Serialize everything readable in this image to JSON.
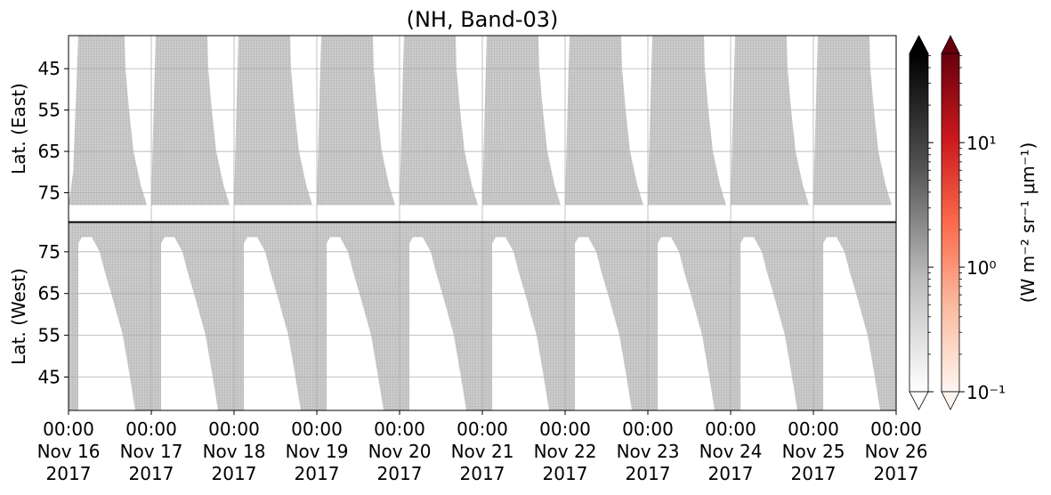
{
  "chart_data": [
    {
      "type": "heatmap",
      "title": "(NH, Band-03)",
      "ylabel": "Lat. (East)",
      "yinvert": true,
      "ylim": [
        37,
        82
      ],
      "yticks": [
        45,
        55,
        65,
        75
      ],
      "grid": true,
      "xlim": [
        "2017-11-16T00:00",
        "2017-11-26T00:00"
      ],
      "xticks": [
        "2017-11-16T00:00",
        "2017-11-17T00:00",
        "2017-11-18T00:00",
        "2017-11-19T00:00",
        "2017-11-20T00:00",
        "2017-11-21T00:00",
        "2017-11-22T00:00",
        "2017-11-23T00:00",
        "2017-11-24T00:00",
        "2017-11-25T00:00",
        "2017-11-26T00:00"
      ],
      "coverage_color": "#cccccc",
      "gap_color": "#ffffff",
      "gaps": [
        {
          "x": [
            "2017-11-16T00:00",
            "2017-11-16T02:50",
            "2017-11-16T01:20",
            "2017-11-16T00:00"
          ],
          "y": [
            37,
            37,
            70,
            78
          ]
        },
        {
          "x": [
            "2017-11-16T00:00",
            "2017-11-26T00:00",
            "2017-11-26T00:00",
            "2017-11-16T00:00"
          ],
          "y": [
            78,
            78,
            82,
            82
          ]
        },
        {
          "x": [
            "2017-11-16T16:16",
            "2017-11-16T16:31",
            "2017-11-16T17:33",
            "2017-11-16T18:50",
            "2017-11-16T20:54",
            "2017-11-16T22:43",
            "2017-11-17T00:00",
            "2017-11-17T00:31",
            "2017-11-17T01:17"
          ],
          "y": [
            37,
            45,
            55,
            65,
            73,
            78,
            78,
            60,
            37
          ]
        },
        {
          "x": [
            "2017-11-17T16:16",
            "2017-11-17T16:31",
            "2017-11-17T17:33",
            "2017-11-17T18:50",
            "2017-11-17T20:54",
            "2017-11-17T22:43",
            "2017-11-18T00:00",
            "2017-11-18T00:31",
            "2017-11-18T01:17"
          ],
          "y": [
            37,
            45,
            55,
            65,
            73,
            78,
            78,
            60,
            37
          ]
        },
        {
          "x": [
            "2017-11-18T16:16",
            "2017-11-18T16:31",
            "2017-11-18T17:33",
            "2017-11-18T18:50",
            "2017-11-18T20:54",
            "2017-11-18T22:43",
            "2017-11-19T00:00",
            "2017-11-19T00:31",
            "2017-11-19T01:17"
          ],
          "y": [
            37,
            45,
            55,
            65,
            73,
            78,
            78,
            60,
            37
          ]
        },
        {
          "x": [
            "2017-11-19T16:16",
            "2017-11-19T16:31",
            "2017-11-19T17:33",
            "2017-11-19T18:50",
            "2017-11-19T20:54",
            "2017-11-19T22:43",
            "2017-11-20T00:00",
            "2017-11-20T00:31",
            "2017-11-20T01:17"
          ],
          "y": [
            37,
            45,
            55,
            65,
            73,
            78,
            78,
            60,
            37
          ]
        },
        {
          "x": [
            "2017-11-20T16:16",
            "2017-11-20T16:31",
            "2017-11-20T17:33",
            "2017-11-20T18:50",
            "2017-11-20T20:54",
            "2017-11-20T22:43",
            "2017-11-21T00:00",
            "2017-11-21T00:31",
            "2017-11-21T01:17"
          ],
          "y": [
            37,
            45,
            55,
            65,
            73,
            78,
            78,
            60,
            37
          ]
        },
        {
          "x": [
            "2017-11-21T16:16",
            "2017-11-21T16:31",
            "2017-11-21T17:33",
            "2017-11-21T18:50",
            "2017-11-21T20:54",
            "2017-11-21T22:43",
            "2017-11-22T00:00",
            "2017-11-22T00:31",
            "2017-11-22T01:17"
          ],
          "y": [
            37,
            45,
            55,
            65,
            73,
            78,
            78,
            60,
            37
          ]
        },
        {
          "x": [
            "2017-11-22T16:16",
            "2017-11-22T16:31",
            "2017-11-22T17:33",
            "2017-11-22T18:50",
            "2017-11-22T20:54",
            "2017-11-22T22:43",
            "2017-11-23T00:00",
            "2017-11-23T00:31",
            "2017-11-23T01:17"
          ],
          "y": [
            37,
            45,
            55,
            65,
            73,
            78,
            78,
            60,
            37
          ]
        },
        {
          "x": [
            "2017-11-23T16:16",
            "2017-11-23T16:31",
            "2017-11-23T17:33",
            "2017-11-23T18:50",
            "2017-11-23T20:54",
            "2017-11-23T22:43",
            "2017-11-24T00:00",
            "2017-11-24T00:31",
            "2017-11-24T01:17"
          ],
          "y": [
            37,
            45,
            55,
            65,
            73,
            78,
            78,
            60,
            37
          ]
        },
        {
          "x": [
            "2017-11-24T16:16",
            "2017-11-24T16:31",
            "2017-11-24T17:33",
            "2017-11-24T18:50",
            "2017-11-24T20:54",
            "2017-11-24T22:43",
            "2017-11-25T00:00",
            "2017-11-25T00:31",
            "2017-11-25T01:17"
          ],
          "y": [
            37,
            45,
            55,
            65,
            73,
            78,
            78,
            60,
            37
          ]
        },
        {
          "x": [
            "2017-11-25T16:16",
            "2017-11-25T16:31",
            "2017-11-25T17:33",
            "2017-11-25T18:50",
            "2017-11-25T20:54",
            "2017-11-25T22:43",
            "2017-11-26T00:00",
            "2017-11-26T00:31",
            "2017-11-26T01:17"
          ],
          "y": [
            37,
            45,
            55,
            65,
            73,
            78,
            78,
            60,
            37
          ]
        }
      ]
    },
    {
      "type": "heatmap",
      "ylabel": "Lat. (West)",
      "yinvert": false,
      "ylim": [
        37,
        82
      ],
      "yticks": [
        45,
        55,
        65,
        75
      ],
      "grid": true,
      "xlim": [
        "2017-11-16T00:00",
        "2017-11-26T00:00"
      ],
      "xticks": [
        {
          "value": "2017-11-16T00:00",
          "label": [
            "00:00",
            "Nov 16",
            "2017"
          ]
        },
        {
          "value": "2017-11-17T00:00",
          "label": [
            "00:00",
            "Nov 17",
            "2017"
          ]
        },
        {
          "value": "2017-11-18T00:00",
          "label": [
            "00:00",
            "Nov 18",
            "2017"
          ]
        },
        {
          "value": "2017-11-19T00:00",
          "label": [
            "00:00",
            "Nov 19",
            "2017"
          ]
        },
        {
          "value": "2017-11-20T00:00",
          "label": [
            "00:00",
            "Nov 20",
            "2017"
          ]
        },
        {
          "value": "2017-11-21T00:00",
          "label": [
            "00:00",
            "Nov 21",
            "2017"
          ]
        },
        {
          "value": "2017-11-22T00:00",
          "label": [
            "00:00",
            "Nov 22",
            "2017"
          ]
        },
        {
          "value": "2017-11-23T00:00",
          "label": [
            "00:00",
            "Nov 23",
            "2017"
          ]
        },
        {
          "value": "2017-11-24T00:00",
          "label": [
            "00:00",
            "Nov 24",
            "2017"
          ]
        },
        {
          "value": "2017-11-25T00:00",
          "label": [
            "00:00",
            "Nov 25",
            "2017"
          ]
        },
        {
          "value": "2017-11-26T00:00",
          "label": [
            "00:00",
            "Nov 26",
            "2017"
          ]
        }
      ],
      "coverage_color": "#cccccc",
      "gap_color": "#ffffff",
      "gaps": [
        {
          "x": [
            "2017-11-16T02:50",
            "2017-11-16T02:50",
            "2017-11-16T03:52",
            "2017-11-16T06:43",
            "2017-11-16T09:02",
            "2017-11-16T10:35",
            "2017-11-16T12:23",
            "2017-11-16T15:45",
            "2017-11-16T17:48",
            "2017-11-16T19:21"
          ],
          "y": [
            37,
            77,
            78.5,
            78.5,
            75,
            70,
            65,
            55,
            45,
            37
          ]
        },
        {
          "x": [
            "2017-11-17T02:50",
            "2017-11-17T02:50",
            "2017-11-17T03:52",
            "2017-11-17T06:43",
            "2017-11-17T09:02",
            "2017-11-17T10:35",
            "2017-11-17T12:23",
            "2017-11-17T15:45",
            "2017-11-17T17:48",
            "2017-11-17T19:21"
          ],
          "y": [
            37,
            77,
            78.5,
            78.5,
            75,
            70,
            65,
            55,
            45,
            37
          ]
        },
        {
          "x": [
            "2017-11-18T02:50",
            "2017-11-18T02:50",
            "2017-11-18T03:52",
            "2017-11-18T06:43",
            "2017-11-18T09:02",
            "2017-11-18T10:35",
            "2017-11-18T12:23",
            "2017-11-18T15:45",
            "2017-11-18T17:48",
            "2017-11-18T19:21"
          ],
          "y": [
            37,
            77,
            78.5,
            78.5,
            75,
            70,
            65,
            55,
            45,
            37
          ]
        },
        {
          "x": [
            "2017-11-19T02:50",
            "2017-11-19T02:50",
            "2017-11-19T03:52",
            "2017-11-19T06:43",
            "2017-11-19T09:02",
            "2017-11-19T10:35",
            "2017-11-19T12:23",
            "2017-11-19T15:45",
            "2017-11-19T17:48",
            "2017-11-19T19:21"
          ],
          "y": [
            37,
            77,
            78.5,
            78.5,
            75,
            70,
            65,
            55,
            45,
            37
          ]
        },
        {
          "x": [
            "2017-11-20T02:50",
            "2017-11-20T02:50",
            "2017-11-20T03:52",
            "2017-11-20T06:43",
            "2017-11-20T09:02",
            "2017-11-20T10:35",
            "2017-11-20T12:23",
            "2017-11-20T15:45",
            "2017-11-20T17:48",
            "2017-11-20T19:21"
          ],
          "y": [
            37,
            77,
            78.5,
            78.5,
            75,
            70,
            65,
            55,
            45,
            37
          ]
        },
        {
          "x": [
            "2017-11-21T02:50",
            "2017-11-21T02:50",
            "2017-11-21T03:52",
            "2017-11-21T06:43",
            "2017-11-21T09:02",
            "2017-11-21T10:35",
            "2017-11-21T12:23",
            "2017-11-21T15:45",
            "2017-11-21T17:48",
            "2017-11-21T19:21"
          ],
          "y": [
            37,
            77,
            78.5,
            78.5,
            75,
            70,
            65,
            55,
            45,
            37
          ]
        },
        {
          "x": [
            "2017-11-22T02:50",
            "2017-11-22T02:50",
            "2017-11-22T03:52",
            "2017-11-22T06:43",
            "2017-11-22T09:02",
            "2017-11-22T10:35",
            "2017-11-22T12:23",
            "2017-11-22T15:45",
            "2017-11-22T17:48",
            "2017-11-22T19:21"
          ],
          "y": [
            37,
            77,
            78.5,
            78.5,
            75,
            70,
            65,
            55,
            45,
            37
          ]
        },
        {
          "x": [
            "2017-11-23T02:50",
            "2017-11-23T02:50",
            "2017-11-23T03:52",
            "2017-11-23T06:43",
            "2017-11-23T09:02",
            "2017-11-23T10:35",
            "2017-11-23T12:23",
            "2017-11-23T15:45",
            "2017-11-23T17:48",
            "2017-11-23T19:21"
          ],
          "y": [
            37,
            77,
            78.5,
            78.5,
            75,
            70,
            65,
            55,
            45,
            37
          ]
        },
        {
          "x": [
            "2017-11-24T02:50",
            "2017-11-24T02:50",
            "2017-11-24T03:52",
            "2017-11-24T06:43",
            "2017-11-24T09:02",
            "2017-11-24T10:35",
            "2017-11-24T12:23",
            "2017-11-24T15:45",
            "2017-11-24T17:48",
            "2017-11-24T19:21"
          ],
          "y": [
            37,
            77,
            78.5,
            78.5,
            75,
            70,
            65,
            55,
            45,
            37
          ]
        },
        {
          "x": [
            "2017-11-25T02:50",
            "2017-11-25T02:50",
            "2017-11-25T03:52",
            "2017-11-25T06:43",
            "2017-11-25T09:02",
            "2017-11-25T10:35",
            "2017-11-25T12:23",
            "2017-11-25T15:45",
            "2017-11-25T17:48",
            "2017-11-25T19:21"
          ],
          "y": [
            37,
            77,
            78.5,
            78.5,
            75,
            70,
            65,
            55,
            45,
            37
          ]
        }
      ]
    }
  ],
  "colorbar": {
    "label": "(W m⁻² sr⁻¹ μm⁻¹)",
    "log": true,
    "clim": [
      0.1,
      52
    ],
    "ticks": [
      {
        "value": 0.1,
        "label": "10⁻¹"
      },
      {
        "value": 1,
        "label": "10⁰"
      },
      {
        "value": 10,
        "label": "10¹"
      }
    ],
    "minor_ticks": [
      0.2,
      0.3,
      0.4,
      0.5,
      0.6,
      0.7,
      0.8,
      0.9,
      2,
      3,
      4,
      5,
      6,
      7,
      8,
      9,
      20,
      30,
      40,
      50
    ],
    "maps": [
      {
        "colors": [
          "#ffffff",
          "#bdbdbd",
          "#525252",
          "#000000"
        ]
      },
      {
        "colors": [
          "#fff5f0",
          "#fcbba1",
          "#fb6a4a",
          "#cb181d",
          "#67000d"
        ]
      }
    ]
  }
}
